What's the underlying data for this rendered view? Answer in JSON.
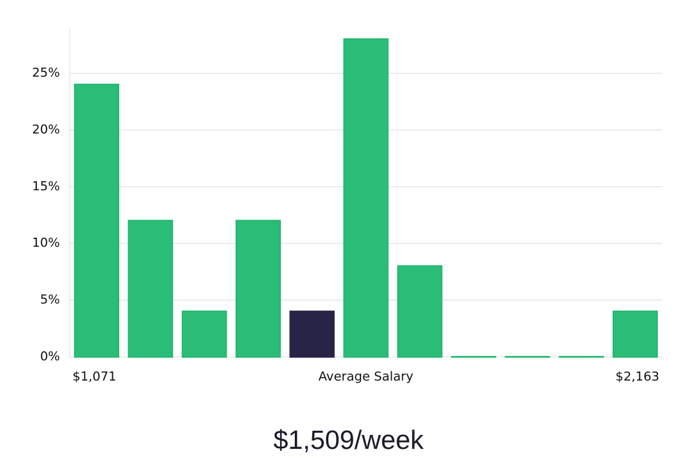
{
  "chart_data": {
    "type": "bar",
    "categories": [
      null,
      null,
      null,
      null,
      null,
      null,
      null,
      null,
      null,
      null,
      null
    ],
    "values": [
      24,
      12,
      4,
      12,
      4,
      28,
      8,
      0,
      0,
      0,
      4
    ],
    "colors": [
      "#2bbd77",
      "#2bbd77",
      "#2bbd77",
      "#2bbd77",
      "#282446",
      "#2bbd77",
      "#2bbd77",
      "#2bbd77",
      "#2bbd77",
      "#2bbd77",
      "#2bbd77"
    ],
    "ylim": [
      0,
      29
    ],
    "yticks": [
      {
        "value": 0,
        "label": "0%"
      },
      {
        "value": 5,
        "label": "5%"
      },
      {
        "value": 10,
        "label": "10%"
      },
      {
        "value": 15,
        "label": "15%"
      },
      {
        "value": 20,
        "label": "20%"
      },
      {
        "value": 25,
        "label": "25%"
      }
    ],
    "grid": true,
    "x_start_label": "$1,071",
    "xlabel": "Average Salary",
    "x_end_label": "$2,163",
    "average_label": "$1,509/week"
  }
}
